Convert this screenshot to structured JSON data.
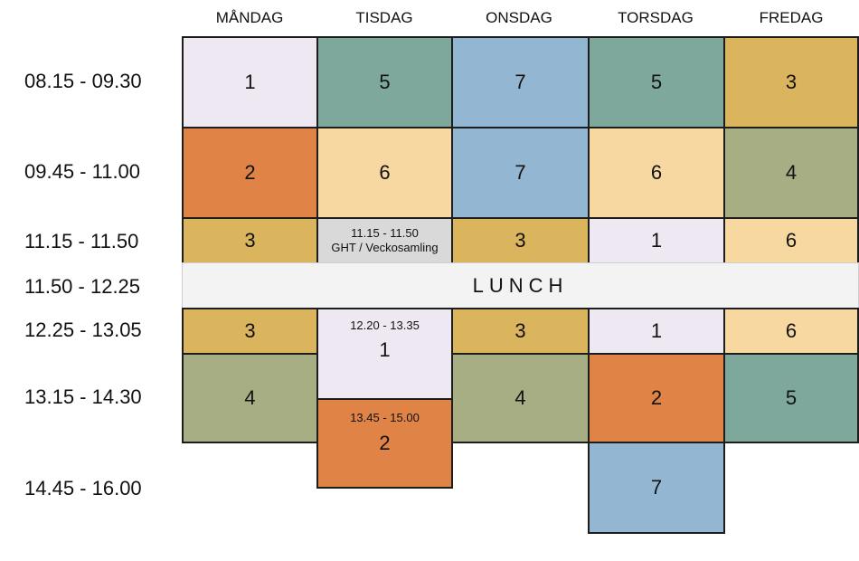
{
  "days": [
    "MÅNDAG",
    "TISDAG",
    "ONSDAG",
    "TORSDAG",
    "FREDAG"
  ],
  "times": [
    "08.15 - 09.30",
    "09.45 - 11.00",
    "11.15 - 11.50",
    "11.50 - 12.25",
    "12.25 - 13.05",
    "13.15 - 14.30",
    "14.45 - 16.00"
  ],
  "lunch": "LUNCH",
  "colors": {
    "lavender": "#eee8f3",
    "teal": "#7ea89c",
    "blue": "#93b6d2",
    "gold": "#dbb45e",
    "orange": "#e08346",
    "cream": "#f6d8a0",
    "olive": "#a7ae83",
    "grey": "#d9d9d9"
  },
  "cells": {
    "mon_p1": "1",
    "tue_p1": "5",
    "wed_p1": "7",
    "thu_p1": "5",
    "fri_p1": "3",
    "mon_p2": "2",
    "tue_p2": "6",
    "wed_p2": "7",
    "thu_p2": "6",
    "fri_p2": "4",
    "mon_p3": "3",
    "tue_p3_time": "11.15 - 11.50",
    "tue_p3_label": "GHT / Veckosamling",
    "wed_p3": "3",
    "thu_p3": "1",
    "fri_p3": "6",
    "mon_p4": "3",
    "tue_p4_time": "12.20 - 13.35",
    "tue_p4": "1",
    "wed_p4": "3",
    "thu_p4": "1",
    "fri_p4": "6",
    "mon_p5": "4",
    "tue_p5_time": "13.45 - 15.00",
    "tue_p5": "2",
    "wed_p5": "4",
    "thu_p5": "2",
    "fri_p5": "5",
    "thu_p6": "7"
  }
}
